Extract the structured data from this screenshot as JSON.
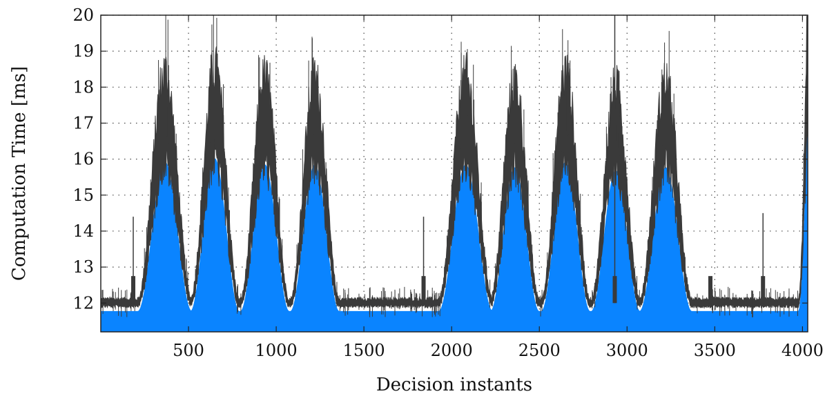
{
  "chart_data": {
    "type": "line",
    "title": "",
    "xlabel": "Decision instants",
    "ylabel": "Computation Time [ms]",
    "xlim": [
      0,
      4030
    ],
    "ylim": [
      11.2,
      20
    ],
    "grid": true,
    "xticks": [
      500,
      1000,
      1500,
      2000,
      2500,
      3000,
      3500,
      4000
    ],
    "xtick_labels": [
      "500",
      "1000",
      "1500",
      "2000",
      "2500",
      "3000",
      "3500",
      "4000"
    ],
    "yticks": [
      12,
      13,
      14,
      15,
      16,
      17,
      18,
      19,
      20
    ],
    "ytick_labels": [
      "12",
      "13",
      "14",
      "15",
      "16",
      "17",
      "18",
      "19",
      "20"
    ],
    "baseline": 12.0,
    "peaks": [
      {
        "center": 365,
        "peak": 17.0,
        "halfwidth": 155
      },
      {
        "center": 650,
        "peak": 17.1,
        "halfwidth": 140
      },
      {
        "center": 935,
        "peak": 16.9,
        "halfwidth": 140
      },
      {
        "center": 1220,
        "peak": 16.9,
        "halfwidth": 140
      },
      {
        "center": 2080,
        "peak": 16.9,
        "halfwidth": 155
      },
      {
        "center": 2360,
        "peak": 16.8,
        "halfwidth": 140
      },
      {
        "center": 2650,
        "peak": 17.0,
        "halfwidth": 140
      },
      {
        "center": 2935,
        "peak": 16.7,
        "halfwidth": 140
      },
      {
        "center": 3220,
        "peak": 16.8,
        "halfwidth": 150
      }
    ],
    "spikes": [
      {
        "x": 185,
        "y": 14.4
      },
      {
        "x": 1840,
        "y": 14.4
      },
      {
        "x": 2930,
        "y": 20.0
      },
      {
        "x": 3475,
        "y": 12.7
      },
      {
        "x": 3775,
        "y": 14.5
      }
    ],
    "end_rise": {
      "start": 3975,
      "end": 4030,
      "peak": 19.6
    },
    "series": [
      {
        "fill_color": "#0a84ff",
        "line_color": "#3a3a3a"
      }
    ]
  }
}
